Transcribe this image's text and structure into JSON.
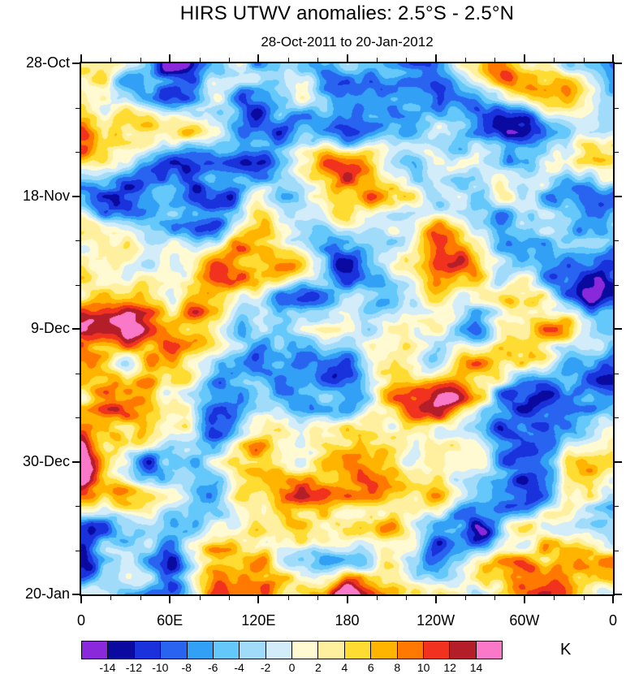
{
  "title": "HIRS UTWV anomalies: 2.5°S - 2.5°N",
  "chart_data": {
    "type": "heatmap",
    "title": "HIRS UTWV anomalies: 2.5°S - 2.5°N",
    "subtitle": "28-Oct-2011 to 20-Jan-2012",
    "xlabel": "",
    "ylabel": "",
    "x_axis": {
      "tick_labels": [
        "0",
        "60E",
        "120E",
        "180",
        "120W",
        "60W",
        "0"
      ],
      "minor_ticks_per_interval": 2
    },
    "y_axis": {
      "tick_labels": [
        "28-Oct",
        "18-Nov",
        "9-Dec",
        "30-Dec",
        "20-Jan"
      ],
      "minor_ticks_per_interval": 2
    },
    "levels": [
      -14,
      -12,
      -10,
      -8,
      -6,
      -4,
      -2,
      0,
      2,
      4,
      6,
      8,
      10,
      12,
      14
    ],
    "colorbar": {
      "unit": "K",
      "boundary_labels": [
        "-14",
        "-12",
        "-10",
        "-8",
        "-6",
        "-4",
        "-2",
        "0",
        "2",
        "4",
        "6",
        "8",
        "10",
        "12",
        "14"
      ],
      "colors": [
        "#8A28DC",
        "#0A0AA0",
        "#1932DC",
        "#2864F0",
        "#32A0F5",
        "#64C8FA",
        "#A0DCFA",
        "#D2ECFA",
        "#FFFAD2",
        "#FFF0A0",
        "#FFDC32",
        "#FFB400",
        "#FF7800",
        "#F0321E",
        "#B41E28",
        "#FA78C8"
      ],
      "value_unit": "K"
    },
    "procedural_field": {
      "seed": 20111028,
      "octaves": [
        {
          "fx": 6,
          "fy": 8,
          "amp": 1.0
        },
        {
          "fx": 12,
          "fy": 16,
          "amp": 0.6
        },
        {
          "fx": 24,
          "fy": 32,
          "amp": 0.34
        },
        {
          "fx": 46,
          "fy": 60,
          "amp": 0.18
        }
      ],
      "scale": 12,
      "bias": 1.2
    },
    "legend_position": "bottom",
    "grid": false
  }
}
